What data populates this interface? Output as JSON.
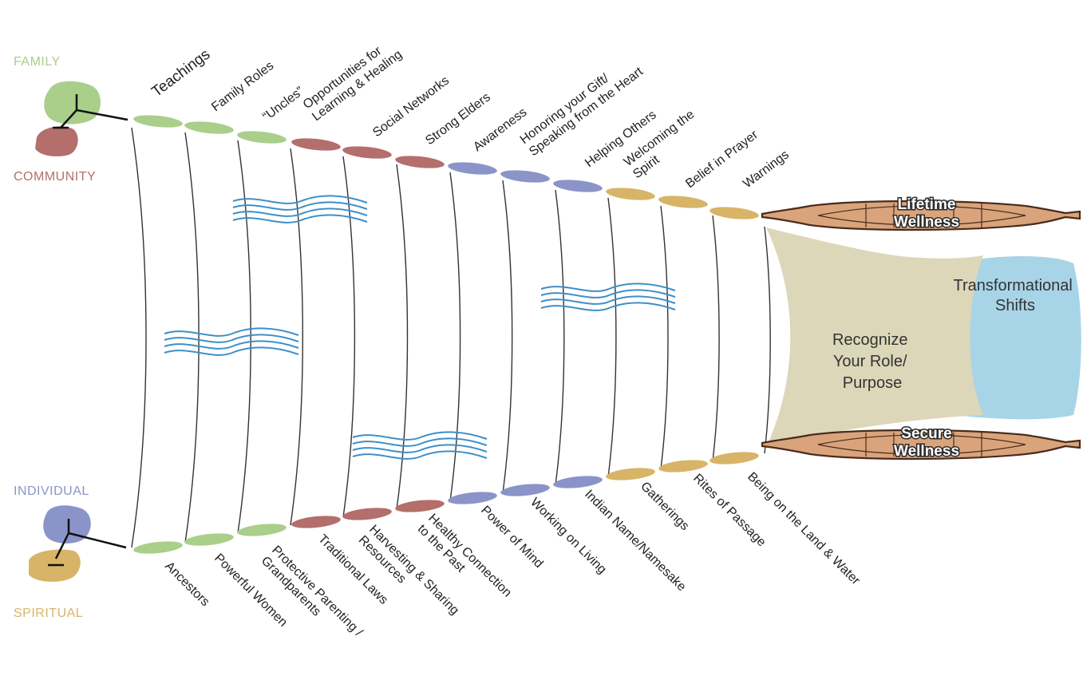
{
  "quadrants": {
    "family": {
      "label": "FAMILY",
      "color": "#a9cf8b"
    },
    "community": {
      "label": "COMMUNITY",
      "color": "#b46e6b"
    },
    "individual": {
      "label": "INDIVIDUAL",
      "color": "#8b94c8"
    },
    "spiritual": {
      "label": "SPIRITUAL",
      "color": "#d8b468"
    }
  },
  "top_labels": [
    [
      "Teachings"
    ],
    [
      "Family Roles"
    ],
    [
      "“Uncles”"
    ],
    [
      "Opportunities for",
      "Learning & Healing"
    ],
    [
      "Social Networks"
    ],
    [
      "Strong Elders"
    ],
    [
      "Awareness"
    ],
    [
      "Honoring your Gift/",
      "Speaking from the Heart"
    ],
    [
      "Helping Others"
    ],
    [
      "Welcoming the",
      "Spirit"
    ],
    [
      "Belief in Prayer"
    ],
    [
      "Warnings"
    ]
  ],
  "bottom_labels": [
    [
      "Ancestors"
    ],
    [
      "Powerful Women"
    ],
    [
      "Protective Parenting /",
      "Grandparents"
    ],
    [
      "Traditional Laws"
    ],
    [
      "Harvesting & Sharing",
      "Resources"
    ],
    [
      "Healthy Connection",
      "to the Past"
    ],
    [
      "Power of Mind"
    ],
    [
      "Working on Living"
    ],
    [
      "Indian Name/Namesake"
    ],
    [
      "Gatherings"
    ],
    [
      "Rites of Passage"
    ],
    [
      "Being on the Land & Water"
    ]
  ],
  "bead_colors": [
    "#a9cf8b",
    "#a9cf8b",
    "#a9cf8b",
    "#b46e6b",
    "#b46e6b",
    "#b46e6b",
    "#8b94c8",
    "#8b94c8",
    "#8b94c8",
    "#d8b468",
    "#d8b468",
    "#d8b468"
  ],
  "boats": {
    "top": [
      "Lifetime",
      "Wellness"
    ],
    "bottom": [
      "Secure",
      "Wellness"
    ]
  },
  "panels": {
    "role": [
      "Recognize",
      "Your Role/",
      "Purpose"
    ],
    "shifts": [
      "Transformational",
      "Shifts"
    ]
  },
  "colors": {
    "boat_fill": "#d9a47c",
    "boat_stroke": "#4a2c1a",
    "water": "#3d8fc9",
    "role_panel": "#dcd7b8",
    "shifts_panel": "#a8d4e8",
    "rib": "#333333"
  }
}
